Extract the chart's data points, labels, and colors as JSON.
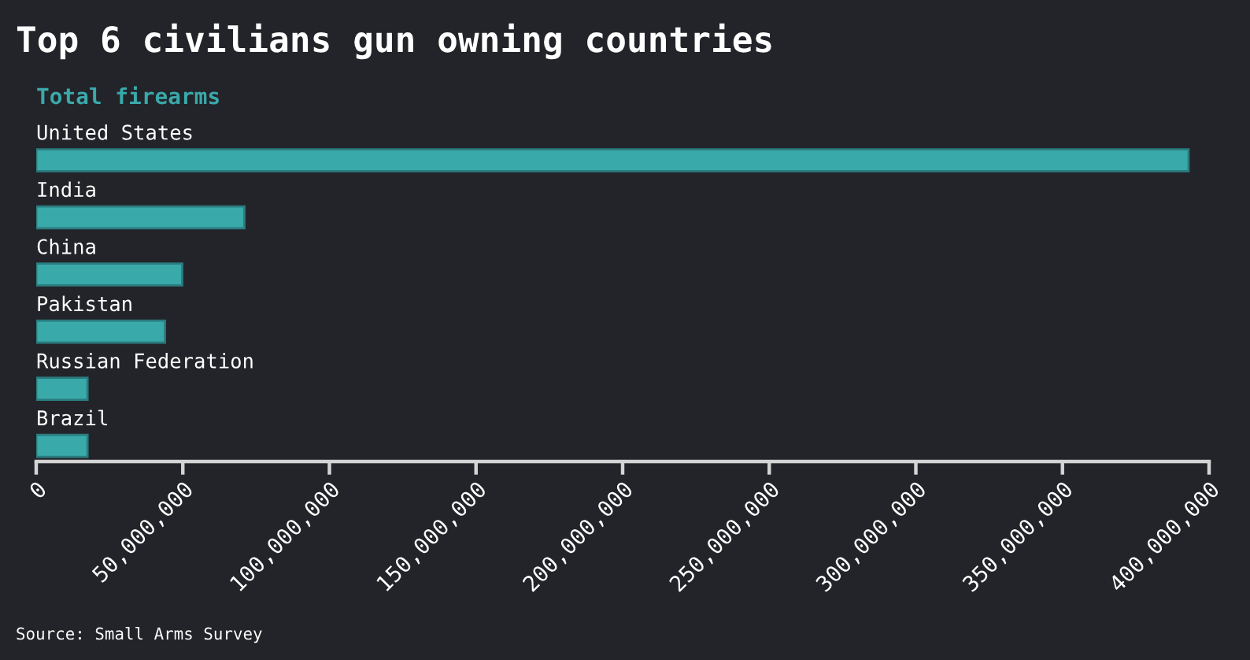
{
  "chart_data": {
    "type": "bar",
    "orientation": "horizontal",
    "title": "Top 6 civilians gun owning countries",
    "subtitle": "Total firearms",
    "categories": [
      "United States",
      "India",
      "China",
      "Pakistan",
      "Russian Federation",
      "Brazil"
    ],
    "values": [
      393000000,
      71000000,
      49800000,
      43900000,
      17500000,
      17500000
    ],
    "color": "#3aa9aa",
    "xlim": [
      0,
      400000000
    ],
    "xticks": [
      0,
      {
        "value": 50000000,
        "label": "50,000,000"
      },
      {
        "value": 100000000,
        "label": "100,000,000"
      },
      {
        "value": 150000000,
        "label": "150,000,000"
      },
      {
        "value": 200000000,
        "label": "200,000,000"
      },
      {
        "value": 250000000,
        "label": "250,000,000"
      },
      {
        "value": 300000000,
        "label": "300,000,000"
      },
      {
        "value": 350000000,
        "label": "350,000,000"
      },
      {
        "value": 400000000,
        "label": "400,000,000"
      }
    ],
    "grid": false,
    "annotations": [
      "Source: Small Arms Survey"
    ]
  }
}
